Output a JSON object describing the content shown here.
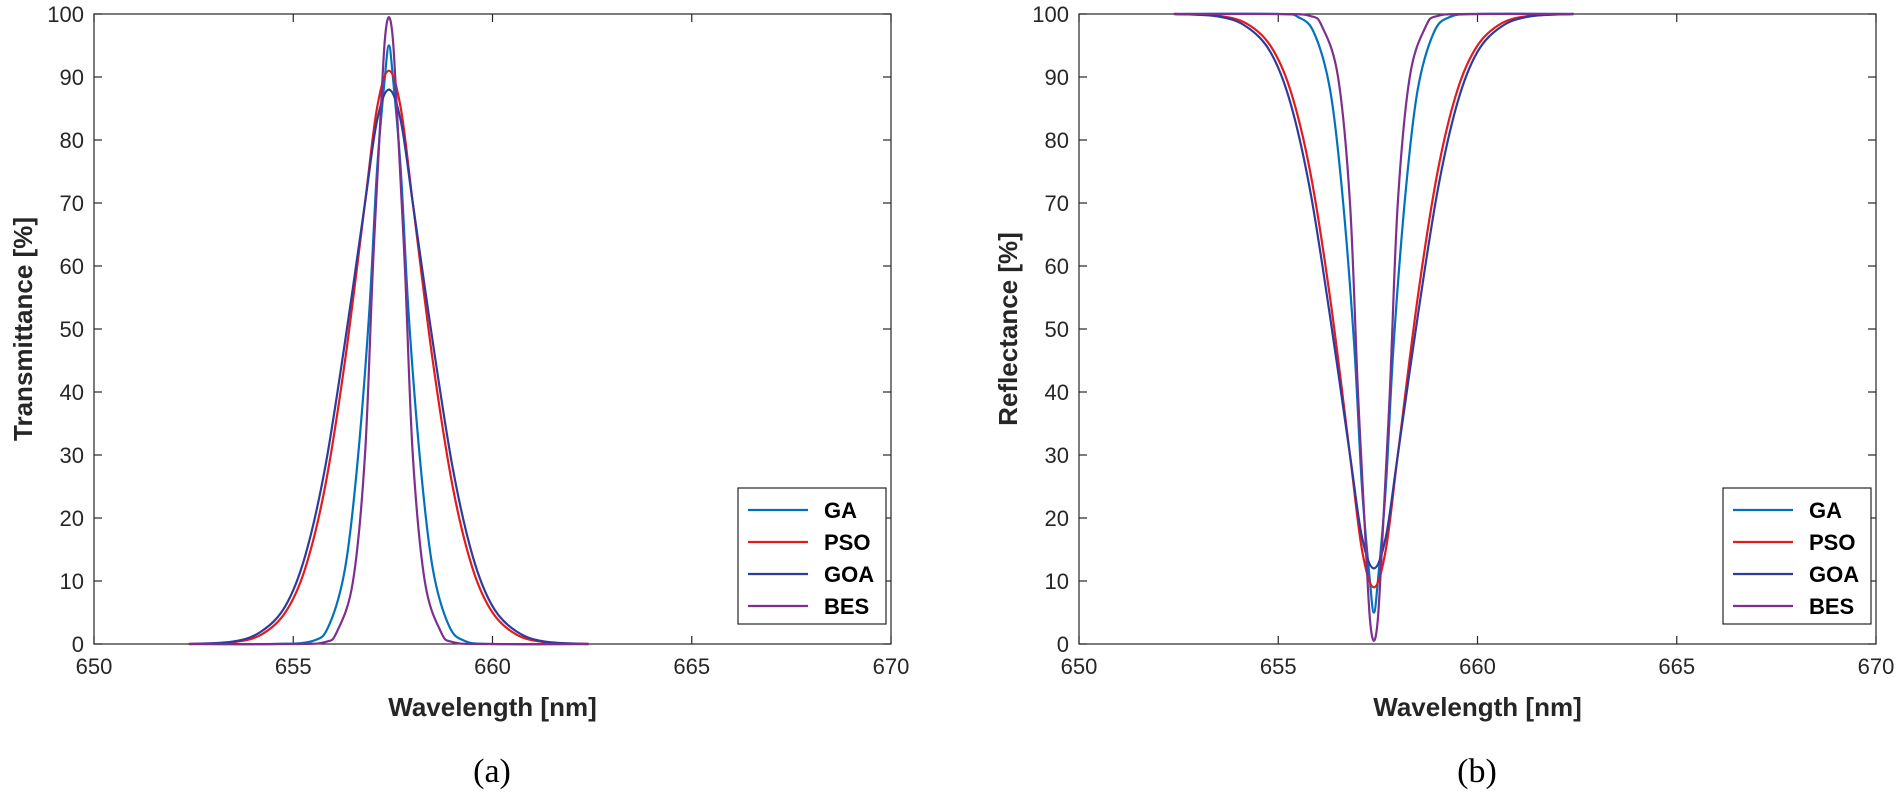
{
  "chart_data": [
    {
      "type": "line",
      "caption": "(a)",
      "xlabel": "Wavelength [nm]",
      "ylabel": "Transmittance [%]",
      "xlim": [
        650,
        670
      ],
      "ylim": [
        0,
        100
      ],
      "xticks": [
        650,
        655,
        660,
        665,
        670
      ],
      "yticks": [
        0,
        10,
        20,
        30,
        40,
        50,
        60,
        70,
        80,
        90,
        100
      ],
      "legend_position": "bottom-right",
      "series": [
        {
          "name": "GA",
          "color": "#0072BD",
          "x": [
            652.4,
            654.5,
            655.5,
            655.9,
            656.3,
            656.6,
            656.9,
            657.1,
            657.3,
            657.4,
            657.5,
            657.7,
            657.9,
            658.2,
            658.5,
            658.9,
            659.3,
            660.0,
            662.4
          ],
          "y": [
            0,
            0,
            0.5,
            3,
            12,
            28,
            52,
            75,
            90,
            95,
            90,
            75,
            52,
            28,
            12,
            3,
            0.5,
            0,
            0
          ]
        },
        {
          "name": "PSO",
          "color": "#E41A1C",
          "x": [
            652.4,
            653.5,
            654.2,
            654.8,
            655.3,
            655.8,
            656.3,
            656.8,
            657.1,
            657.4,
            657.7,
            658.0,
            658.5,
            659.0,
            659.5,
            660.0,
            660.6,
            661.3,
            662.4
          ],
          "y": [
            0,
            0.3,
            1.5,
            5,
            12,
            25,
            45,
            70,
            85,
            91,
            85,
            70,
            45,
            25,
            12,
            5,
            1.5,
            0.3,
            0
          ]
        },
        {
          "name": "GOA",
          "color": "#2E3B9E",
          "x": [
            652.4,
            653.5,
            654.2,
            654.8,
            655.3,
            655.8,
            656.3,
            656.8,
            657.1,
            657.4,
            657.7,
            658.0,
            658.5,
            659.0,
            659.5,
            660.0,
            660.6,
            661.3,
            662.4
          ],
          "y": [
            0,
            0.4,
            2,
            6,
            14,
            28,
            48,
            70,
            83,
            88,
            83,
            70,
            48,
            28,
            14,
            6,
            2,
            0.4,
            0
          ]
        },
        {
          "name": "BES",
          "color": "#7E2F8E",
          "x": [
            652.4,
            655.0,
            655.8,
            656.1,
            656.5,
            656.8,
            657.0,
            657.2,
            657.3,
            657.4,
            657.5,
            657.6,
            657.8,
            658.0,
            658.3,
            658.7,
            659.0,
            659.8,
            662.4
          ],
          "y": [
            0,
            0,
            0.3,
            2,
            10,
            30,
            60,
            85,
            96,
            99.5,
            96,
            85,
            60,
            30,
            10,
            2,
            0.3,
            0,
            0
          ]
        }
      ]
    },
    {
      "type": "line",
      "caption": "(b)",
      "xlabel": "Wavelength [nm]",
      "ylabel": "Reflectance [%]",
      "xlim": [
        650,
        670
      ],
      "ylim": [
        0,
        100
      ],
      "xticks": [
        650,
        655,
        660,
        665,
        670
      ],
      "yticks": [
        0,
        10,
        20,
        30,
        40,
        50,
        60,
        70,
        80,
        90,
        100
      ],
      "legend_position": "bottom-right",
      "series": [
        {
          "name": "GA",
          "color": "#0072BD",
          "x": [
            652.4,
            655.0,
            655.5,
            655.9,
            656.3,
            656.6,
            656.9,
            657.1,
            657.3,
            657.4,
            657.5,
            657.7,
            657.9,
            658.2,
            658.5,
            658.9,
            659.3,
            660.0,
            662.4
          ],
          "y": [
            100,
            100,
            99.5,
            97,
            88,
            72,
            48,
            25,
            10,
            5,
            10,
            25,
            48,
            72,
            88,
            97,
            99.5,
            100,
            100
          ]
        },
        {
          "name": "PSO",
          "color": "#E41A1C",
          "x": [
            652.4,
            653.5,
            654.2,
            654.8,
            655.3,
            655.8,
            656.3,
            656.8,
            657.1,
            657.4,
            657.7,
            658.0,
            658.5,
            659.0,
            659.5,
            660.0,
            660.6,
            661.3,
            662.4
          ],
          "y": [
            100,
            99.7,
            98.5,
            95,
            88,
            75,
            55,
            30,
            15,
            9,
            15,
            30,
            55,
            75,
            88,
            95,
            98.5,
            99.7,
            100
          ]
        },
        {
          "name": "GOA",
          "color": "#2E3B9E",
          "x": [
            652.4,
            653.5,
            654.2,
            654.8,
            655.3,
            655.8,
            656.3,
            656.8,
            657.1,
            657.4,
            657.7,
            658.0,
            658.5,
            659.0,
            659.5,
            660.0,
            660.6,
            661.3,
            662.4
          ],
          "y": [
            100,
            99.6,
            98,
            94,
            86,
            72,
            52,
            30,
            17,
            12,
            17,
            30,
            52,
            72,
            86,
            94,
            98,
            99.6,
            100
          ]
        },
        {
          "name": "BES",
          "color": "#7E2F8E",
          "x": [
            652.4,
            655.0,
            655.8,
            656.1,
            656.5,
            656.8,
            657.0,
            657.2,
            657.3,
            657.4,
            657.5,
            657.6,
            657.8,
            658.0,
            658.3,
            658.7,
            659.0,
            659.8,
            662.4
          ],
          "y": [
            100,
            100,
            99.7,
            98,
            90,
            70,
            40,
            15,
            4,
            0.5,
            4,
            15,
            40,
            70,
            90,
            98,
            99.7,
            100,
            100
          ]
        }
      ]
    }
  ]
}
